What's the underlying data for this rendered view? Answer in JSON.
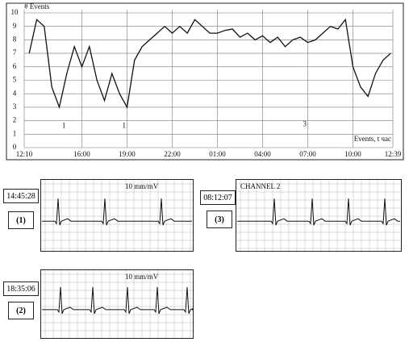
{
  "chart_data": {
    "type": "line",
    "y_label": "# Events",
    "x_label": "Events, t час",
    "x": [
      12.5,
      13,
      13.5,
      14,
      14.5,
      15,
      15.5,
      16,
      16.5,
      17,
      17.5,
      18,
      18.5,
      19,
      19.5,
      20,
      20.5,
      21,
      21.5,
      22,
      22.5,
      23,
      23.5,
      24,
      24.5,
      25,
      25.5,
      26,
      26.5,
      27,
      27.5,
      28,
      28.5,
      29,
      29.5,
      30,
      30.5,
      31,
      31.5,
      32,
      32.5,
      33,
      33.5,
      34,
      34.5,
      35,
      35.5,
      36,
      36.5
    ],
    "series": [
      {
        "name": "events",
        "color": "#111111",
        "values": [
          7,
          9.5,
          9,
          4.5,
          3,
          5.5,
          7.5,
          6,
          7.5,
          5,
          3.5,
          5.5,
          4,
          3,
          6.5,
          7.5,
          8,
          8.5,
          9,
          8.5,
          9,
          8.5,
          9.5,
          9,
          8.5,
          8.5,
          8.7,
          8.8,
          8.2,
          8.5,
          8,
          8.3,
          7.8,
          8.2,
          7.5,
          8,
          8.2,
          7.8,
          8,
          8.5,
          9,
          8.8,
          9.5,
          6,
          4.5,
          3.8,
          5.5,
          6.5,
          7
        ]
      }
    ],
    "xlim": [
      12.17,
      36.65
    ],
    "xticks": [
      {
        "value": 12.17,
        "label": "12:10"
      },
      {
        "value": 16,
        "label": "16:00"
      },
      {
        "value": 19,
        "label": "19:00"
      },
      {
        "value": 22,
        "label": "22:00"
      },
      {
        "value": 25,
        "label": "01:00"
      },
      {
        "value": 28,
        "label": "04:00"
      },
      {
        "value": 31,
        "label": "07:00"
      },
      {
        "value": 34,
        "label": "10:00"
      },
      {
        "value": 36.65,
        "label": "12:39"
      }
    ],
    "ylim": [
      0,
      10
    ],
    "yticks": [
      0,
      1,
      2,
      3,
      4,
      5,
      6,
      7,
      8,
      9,
      10
    ],
    "grid": true,
    "annotations": [
      {
        "text": "1",
        "x": 14.8,
        "y": 1.6
      },
      {
        "text": "1",
        "x": 18.8,
        "y": 1.6
      },
      {
        "text": "3",
        "x": 30.8,
        "y": 1.7
      }
    ]
  },
  "strips": [
    {
      "time": "14:45:28",
      "number": "(1)",
      "scale": "10 mm/mV"
    },
    {
      "time": "08:12:07",
      "number": "(3)",
      "scale": "CHANNEL 2"
    },
    {
      "time": "18:35:06",
      "number": "(2)",
      "scale": "10 mm/mV"
    }
  ]
}
